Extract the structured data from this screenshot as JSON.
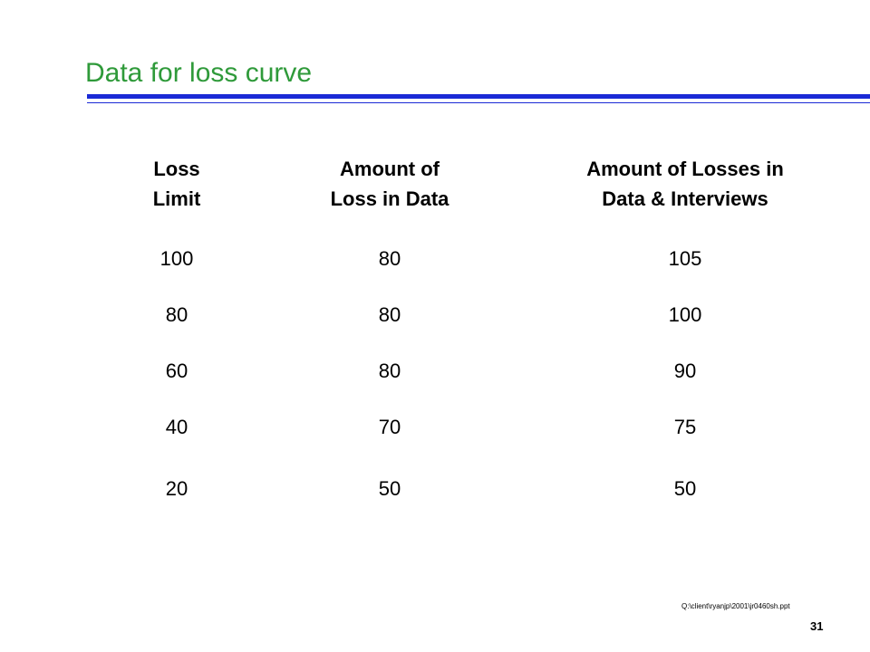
{
  "slide": {
    "title": "Data for loss curve",
    "footer_path": "Q:\\client\\ryanjp\\2001\\jr0460sh.ppt",
    "page_number": "31"
  },
  "table": {
    "headers": [
      {
        "line1": "Loss",
        "line2": "Limit"
      },
      {
        "line1": "Amount of",
        "line2": "Loss in Data"
      },
      {
        "line1": "Amount of Losses in",
        "line2": "Data & Interviews"
      }
    ],
    "rows": [
      [
        "100",
        "80",
        "105"
      ],
      [
        "80",
        "80",
        "100"
      ],
      [
        "60",
        "80",
        "90"
      ],
      [
        "40",
        "70",
        "75"
      ],
      [
        "20",
        "50",
        "50"
      ]
    ]
  },
  "colors": {
    "title": "#2f9a3a",
    "rule": "#1a2ad6",
    "text": "#000000"
  }
}
